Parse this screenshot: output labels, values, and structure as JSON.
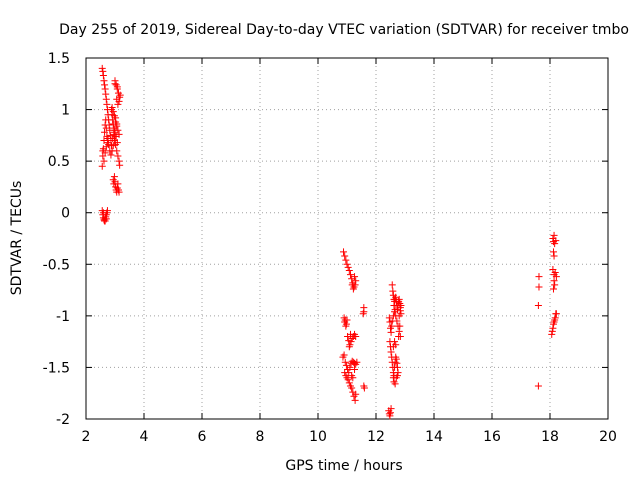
{
  "chart_data": {
    "type": "scatter",
    "title": "Day 255 of 2019, Sidereal Day-to-day VTEC variation (SDTVAR) for receiver tmbo",
    "xlabel": "GPS time / hours",
    "ylabel": "SDTVAR / TECUs",
    "xlim": [
      2,
      20
    ],
    "ylim": [
      -2,
      1.5
    ],
    "xticks": [
      "2",
      "4",
      "6",
      "8",
      "10",
      "12",
      "14",
      "16",
      "18",
      "20"
    ],
    "yticks": [
      "1.5",
      "1",
      "0.5",
      "0",
      "-0.5",
      "-1",
      "-1.5",
      "-2"
    ],
    "grid": true,
    "marker": "+",
    "color": "#ff0000",
    "series": [
      {
        "name": "SDTVAR",
        "points": [
          [
            2.56,
            1.4
          ],
          [
            2.58,
            1.37
          ],
          [
            2.6,
            1.33
          ],
          [
            2.62,
            1.28
          ],
          [
            2.64,
            1.24
          ],
          [
            2.66,
            1.2
          ],
          [
            2.68,
            1.15
          ],
          [
            2.7,
            1.1
          ],
          [
            2.72,
            1.05
          ],
          [
            2.74,
            1.0
          ],
          [
            2.76,
            0.95
          ],
          [
            2.78,
            0.9
          ],
          [
            2.8,
            0.85
          ],
          [
            2.82,
            0.8
          ],
          [
            2.84,
            0.75
          ],
          [
            2.86,
            0.7
          ],
          [
            2.88,
            0.65
          ],
          [
            2.56,
            0.45
          ],
          [
            2.58,
            0.55
          ],
          [
            2.6,
            0.62
          ],
          [
            2.62,
            0.7
          ],
          [
            2.64,
            0.78
          ],
          [
            2.66,
            0.85
          ],
          [
            2.68,
            0.9
          ],
          [
            2.7,
            0.82
          ],
          [
            2.72,
            0.74
          ],
          [
            2.74,
            0.68
          ],
          [
            2.76,
            0.72
          ],
          [
            2.78,
            0.66
          ],
          [
            2.58,
            0.6
          ],
          [
            2.62,
            0.5
          ],
          [
            2.66,
            0.58
          ],
          [
            2.7,
            0.64
          ],
          [
            2.82,
            0.6
          ],
          [
            2.86,
            0.56
          ],
          [
            2.9,
            0.6
          ],
          [
            2.94,
            0.65
          ],
          [
            2.98,
            0.7
          ],
          [
            3.02,
            0.66
          ],
          [
            3.06,
            0.6
          ],
          [
            3.1,
            0.55
          ],
          [
            3.14,
            0.5
          ],
          [
            3.16,
            0.46
          ],
          [
            2.92,
            0.72
          ],
          [
            2.96,
            0.76
          ],
          [
            3.0,
            0.8
          ],
          [
            3.04,
            0.74
          ],
          [
            3.08,
            0.68
          ],
          [
            2.88,
            1.0
          ],
          [
            2.9,
            0.95
          ],
          [
            2.92,
            0.9
          ],
          [
            2.94,
            0.86
          ],
          [
            2.96,
            0.82
          ],
          [
            2.98,
            0.78
          ],
          [
            3.0,
            0.74
          ],
          [
            2.9,
            1.02
          ],
          [
            2.94,
            0.98
          ],
          [
            2.98,
            0.94
          ],
          [
            3.02,
            0.88
          ],
          [
            3.06,
            0.84
          ],
          [
            3.1,
            0.8
          ],
          [
            3.14,
            0.76
          ],
          [
            3.02,
            0.92
          ],
          [
            3.06,
            0.86
          ],
          [
            3.0,
            1.28
          ],
          [
            3.04,
            1.24
          ],
          [
            3.08,
            1.2
          ],
          [
            3.12,
            1.16
          ],
          [
            3.16,
            1.12
          ],
          [
            3.06,
            1.1
          ],
          [
            3.1,
            1.05
          ],
          [
            3.14,
            1.08
          ],
          [
            3.18,
            1.14
          ],
          [
            3.0,
            1.25
          ],
          [
            3.08,
            1.22
          ],
          [
            2.98,
            0.35
          ],
          [
            3.0,
            0.3
          ],
          [
            3.02,
            0.25
          ],
          [
            3.04,
            0.22
          ],
          [
            3.06,
            0.2
          ],
          [
            3.08,
            0.24
          ],
          [
            3.1,
            0.28
          ],
          [
            3.12,
            0.22
          ],
          [
            2.96,
            0.28
          ],
          [
            2.94,
            0.32
          ],
          [
            3.14,
            0.2
          ],
          [
            2.56,
            0.02
          ],
          [
            2.58,
            -0.02
          ],
          [
            2.6,
            -0.05
          ],
          [
            2.62,
            -0.07
          ],
          [
            2.64,
            -0.08
          ],
          [
            2.66,
            -0.06
          ],
          [
            2.68,
            -0.04
          ],
          [
            2.7,
            -0.02
          ],
          [
            2.72,
            0.0
          ],
          [
            2.74,
            0.02
          ],
          [
            2.6,
            0.0
          ],
          [
            2.66,
            -0.08
          ],
          [
            2.7,
            -0.06
          ],
          [
            10.88,
            -0.38
          ],
          [
            10.92,
            -0.42
          ],
          [
            10.96,
            -0.46
          ],
          [
            11.0,
            -0.5
          ],
          [
            11.04,
            -0.53
          ],
          [
            11.08,
            -0.56
          ],
          [
            11.12,
            -0.6
          ],
          [
            11.16,
            -0.64
          ],
          [
            11.2,
            -0.68
          ],
          [
            11.24,
            -0.72
          ],
          [
            11.28,
            -0.7
          ],
          [
            11.3,
            -0.66
          ],
          [
            11.22,
            -0.74
          ],
          [
            11.18,
            -0.7
          ],
          [
            11.26,
            -0.62
          ],
          [
            10.9,
            -1.02
          ],
          [
            10.94,
            -1.04
          ],
          [
            10.98,
            -1.08
          ],
          [
            10.92,
            -1.06
          ],
          [
            10.96,
            -1.1
          ],
          [
            11.0,
            -1.04
          ],
          [
            11.02,
            -1.2
          ],
          [
            11.06,
            -1.24
          ],
          [
            11.1,
            -1.28
          ],
          [
            11.14,
            -1.25
          ],
          [
            11.18,
            -1.22
          ],
          [
            11.22,
            -1.2
          ],
          [
            11.26,
            -1.18
          ],
          [
            11.3,
            -1.2
          ],
          [
            11.08,
            -1.3
          ],
          [
            11.12,
            -1.18
          ],
          [
            10.86,
            -1.4
          ],
          [
            10.9,
            -1.38
          ],
          [
            10.94,
            -1.45
          ],
          [
            10.98,
            -1.48
          ],
          [
            11.02,
            -1.52
          ],
          [
            11.06,
            -1.55
          ],
          [
            11.1,
            -1.5
          ],
          [
            11.14,
            -1.46
          ],
          [
            11.18,
            -1.44
          ],
          [
            11.22,
            -1.45
          ],
          [
            11.26,
            -1.46
          ],
          [
            11.3,
            -1.47
          ],
          [
            11.34,
            -1.45
          ],
          [
            10.92,
            -1.55
          ],
          [
            10.96,
            -1.58
          ],
          [
            11.0,
            -1.6
          ],
          [
            11.04,
            -1.62
          ],
          [
            11.08,
            -1.65
          ],
          [
            11.12,
            -1.68
          ],
          [
            11.16,
            -1.7
          ],
          [
            11.2,
            -1.74
          ],
          [
            11.24,
            -1.78
          ],
          [
            11.28,
            -1.82
          ],
          [
            11.3,
            -1.76
          ],
          [
            11.2,
            -1.6
          ],
          [
            11.16,
            -1.58
          ],
          [
            11.26,
            -1.52
          ],
          [
            11.58,
            -0.92
          ],
          [
            11.58,
            -0.96
          ],
          [
            11.56,
            -0.98
          ],
          [
            11.6,
            -1.7
          ],
          [
            11.58,
            -1.68
          ],
          [
            12.44,
            -1.92
          ],
          [
            12.46,
            -1.95
          ],
          [
            12.48,
            -1.97
          ],
          [
            12.5,
            -1.94
          ],
          [
            12.52,
            -1.9
          ],
          [
            12.48,
            -1.25
          ],
          [
            12.5,
            -1.3
          ],
          [
            12.52,
            -1.35
          ],
          [
            12.54,
            -1.4
          ],
          [
            12.56,
            -1.45
          ],
          [
            12.58,
            -1.5
          ],
          [
            12.6,
            -1.55
          ],
          [
            12.62,
            -1.58
          ],
          [
            12.64,
            -1.5
          ],
          [
            12.66,
            -1.45
          ],
          [
            12.68,
            -1.4
          ],
          [
            12.7,
            -1.42
          ],
          [
            12.72,
            -1.46
          ],
          [
            12.74,
            -1.5
          ],
          [
            12.76,
            -1.55
          ],
          [
            12.6,
            -1.3
          ],
          [
            12.64,
            -1.25
          ],
          [
            12.68,
            -1.28
          ],
          [
            12.46,
            -1.02
          ],
          [
            12.48,
            -1.06
          ],
          [
            12.5,
            -1.12
          ],
          [
            12.52,
            -1.16
          ],
          [
            12.54,
            -1.1
          ],
          [
            12.56,
            -1.05
          ],
          [
            12.6,
            -1.0
          ],
          [
            12.64,
            -0.96
          ],
          [
            12.68,
            -1.0
          ],
          [
            12.72,
            -1.05
          ],
          [
            12.76,
            -1.1
          ],
          [
            12.8,
            -1.0
          ],
          [
            12.84,
            -0.95
          ],
          [
            12.86,
            -0.9
          ],
          [
            12.56,
            -0.7
          ],
          [
            12.58,
            -0.76
          ],
          [
            12.6,
            -0.8
          ],
          [
            12.62,
            -0.84
          ],
          [
            12.64,
            -0.86
          ],
          [
            12.66,
            -0.84
          ],
          [
            12.68,
            -0.82
          ],
          [
            12.7,
            -0.86
          ],
          [
            12.72,
            -0.9
          ],
          [
            12.74,
            -0.94
          ],
          [
            12.76,
            -0.9
          ],
          [
            12.78,
            -0.86
          ],
          [
            12.8,
            -0.84
          ],
          [
            12.82,
            -0.88
          ],
          [
            12.84,
            -0.92
          ],
          [
            12.86,
            -0.98
          ],
          [
            12.62,
            -0.9
          ],
          [
            12.66,
            -0.94
          ],
          [
            12.6,
            -1.6
          ],
          [
            12.62,
            -1.64
          ],
          [
            12.66,
            -1.66
          ],
          [
            12.7,
            -1.6
          ],
          [
            12.74,
            -1.58
          ],
          [
            12.78,
            -1.2
          ],
          [
            12.8,
            -1.15
          ],
          [
            12.82,
            -1.1
          ],
          [
            12.84,
            -1.2
          ],
          [
            17.62,
            -0.62
          ],
          [
            17.62,
            -0.72
          ],
          [
            17.6,
            -0.9
          ],
          [
            17.6,
            -1.68
          ],
          [
            18.1,
            -0.25
          ],
          [
            18.12,
            -0.28
          ],
          [
            18.16,
            -0.3
          ],
          [
            18.2,
            -0.27
          ],
          [
            18.14,
            -0.22
          ],
          [
            18.12,
            -0.38
          ],
          [
            18.14,
            -0.42
          ],
          [
            18.1,
            -0.55
          ],
          [
            18.14,
            -0.6
          ],
          [
            18.18,
            -0.58
          ],
          [
            18.22,
            -0.62
          ],
          [
            18.14,
            -0.66
          ],
          [
            18.16,
            -0.7
          ],
          [
            18.12,
            -0.74
          ],
          [
            18.2,
            -0.98
          ],
          [
            18.18,
            -1.02
          ],
          [
            18.14,
            -1.06
          ],
          [
            18.12,
            -1.08
          ],
          [
            18.1,
            -1.12
          ],
          [
            18.16,
            -1.04
          ],
          [
            18.22,
            -0.98
          ],
          [
            18.08,
            -1.15
          ],
          [
            18.06,
            -1.18
          ]
        ]
      }
    ]
  }
}
